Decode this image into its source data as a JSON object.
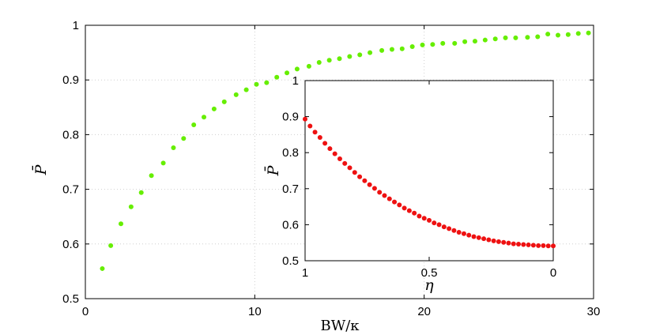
{
  "chart_data": [
    {
      "type": "scatter",
      "xlabel": "BW/κ",
      "ylabel": "P̄",
      "xlim": [
        0,
        30
      ],
      "ylim": [
        0.5,
        1
      ],
      "xticks": [
        "0",
        "10",
        "20",
        "30"
      ],
      "yticks": [
        "0.5",
        "0.6",
        "0.7",
        "0.8",
        "0.9",
        "1"
      ],
      "grid": true,
      "marker_color": "#66ee00",
      "series": [
        {
          "x": [
            1.0,
            1.5,
            2.1,
            2.7,
            3.3,
            3.9,
            4.6,
            5.2,
            5.8,
            6.4,
            7.0,
            7.6,
            8.2,
            8.9,
            9.5,
            10.1,
            10.7,
            11.3,
            11.9,
            12.5,
            13.2,
            13.8,
            14.4,
            15.0,
            15.6,
            16.2,
            16.8,
            17.5,
            18.1,
            18.7,
            19.3,
            19.9,
            20.5,
            21.1,
            21.8,
            22.4,
            23.0,
            23.6,
            24.2,
            24.8,
            25.4,
            26.1,
            26.7,
            27.3,
            27.9,
            28.5,
            29.1,
            29.7
          ],
          "y": [
            0.555,
            0.597,
            0.637,
            0.668,
            0.694,
            0.725,
            0.748,
            0.776,
            0.793,
            0.818,
            0.832,
            0.847,
            0.86,
            0.873,
            0.882,
            0.892,
            0.895,
            0.905,
            0.913,
            0.92,
            0.925,
            0.932,
            0.936,
            0.939,
            0.943,
            0.946,
            0.95,
            0.954,
            0.956,
            0.957,
            0.961,
            0.964,
            0.965,
            0.967,
            0.967,
            0.97,
            0.971,
            0.973,
            0.975,
            0.977,
            0.977,
            0.978,
            0.979,
            0.984,
            0.982,
            0.983,
            0.985,
            0.986
          ]
        }
      ]
    },
    {
      "type": "scatter",
      "xlabel": "η",
      "ylabel": "P̄",
      "xlim": [
        1,
        0
      ],
      "ylim": [
        0.5,
        1
      ],
      "xticks": [
        "1",
        "0.5",
        "0"
      ],
      "yticks": [
        "0.5",
        "0.6",
        "0.7",
        "0.8",
        "0.9",
        "1"
      ],
      "grid": false,
      "legend": "none",
      "marker_color": "#ee1111",
      "series": [
        {
          "x": [
            1.0,
            0.98,
            0.96,
            0.94,
            0.92,
            0.9,
            0.88,
            0.86,
            0.84,
            0.82,
            0.8,
            0.78,
            0.76,
            0.74,
            0.72,
            0.7,
            0.68,
            0.66,
            0.64,
            0.62,
            0.6,
            0.58,
            0.56,
            0.54,
            0.52,
            0.5,
            0.48,
            0.46,
            0.44,
            0.42,
            0.4,
            0.38,
            0.36,
            0.34,
            0.32,
            0.3,
            0.28,
            0.26,
            0.24,
            0.22,
            0.2,
            0.18,
            0.16,
            0.14,
            0.12,
            0.1,
            0.08,
            0.06,
            0.04,
            0.02,
            0.0
          ],
          "y": [
            0.893,
            0.874,
            0.857,
            0.842,
            0.826,
            0.811,
            0.797,
            0.783,
            0.77,
            0.758,
            0.745,
            0.733,
            0.722,
            0.711,
            0.701,
            0.69,
            0.681,
            0.672,
            0.663,
            0.655,
            0.646,
            0.639,
            0.632,
            0.624,
            0.618,
            0.612,
            0.605,
            0.6,
            0.594,
            0.589,
            0.584,
            0.579,
            0.575,
            0.571,
            0.567,
            0.564,
            0.561,
            0.558,
            0.555,
            0.553,
            0.551,
            0.549,
            0.547,
            0.546,
            0.545,
            0.544,
            0.543,
            0.542,
            0.542,
            0.541,
            0.541
          ]
        }
      ]
    }
  ]
}
